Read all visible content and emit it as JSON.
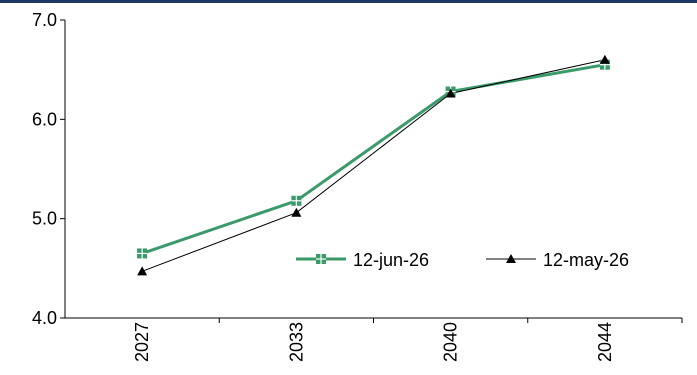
{
  "chart_data": {
    "type": "line",
    "categories": [
      "2027",
      "2033",
      "2040",
      "2044"
    ],
    "ylim": [
      4.0,
      7.0
    ],
    "yticks": [
      "4.0",
      "5.0",
      "6.0",
      "7.0"
    ],
    "grid": false,
    "legend_position": "bottom-right",
    "series": [
      {
        "name": "12-jun-26",
        "values": [
          4.65,
          5.18,
          6.28,
          6.55
        ],
        "color": "#3a9a6a",
        "marker": "square-plus"
      },
      {
        "name": "12-may-26",
        "values": [
          4.47,
          5.06,
          6.26,
          6.6
        ],
        "color": "#000000",
        "marker": "triangle"
      }
    ]
  }
}
